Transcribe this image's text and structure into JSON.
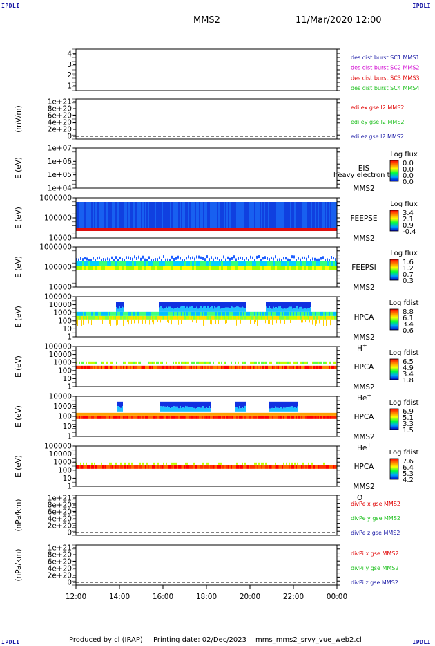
{
  "header": {
    "corner_label": "IPDLI",
    "spacecraft": "MMS2",
    "datetime": "11/Mar/2020 12:00"
  },
  "footer": {
    "produced_by": "Produced by cl (IRAP)",
    "printing_date": "Printing date: 02/Dec/2023",
    "filename": "mms_mms2_srvy_vue_web2.cl"
  },
  "colors": {
    "blue_label": "#1a1aa6",
    "magenta_label": "#d000d0",
    "red_label": "#e00000",
    "green_label": "#20c020"
  },
  "chart_data": {
    "type": "heatmap",
    "x_tick_labels": [
      "12:00",
      "14:00",
      "16:00",
      "18:00",
      "20:00",
      "22:00",
      "00:00"
    ],
    "xlim": [
      "12:00",
      "00:00"
    ],
    "panels": [
      {
        "type": "line",
        "yticks": [
          "1",
          "2",
          "3",
          "4"
        ],
        "ylim": [
          0.5,
          4.5
        ],
        "ylabel": "",
        "legend": [
          {
            "text": "des dist burst SC1 MMS1",
            "color": "#1a1aa6"
          },
          {
            "text": "des dist burst SC2 MMS2",
            "color": "#d000d0"
          },
          {
            "text": "des dist burst SC3 MMS3",
            "color": "#e00000"
          },
          {
            "text": "des dist burst SC4 MMS4",
            "color": "#20c020"
          }
        ]
      },
      {
        "type": "line",
        "yticks": [
          "0",
          "2e+20",
          "4e+20",
          "6e+20",
          "8e+20",
          "1e+21"
        ],
        "ylim": [
          0,
          1e+21
        ],
        "ylabel": "(mV/m)",
        "legend": [
          {
            "text": "edi ex gse l2 MMS2",
            "color": "#e00000"
          },
          {
            "text": "edi ey gse l2 MMS2",
            "color": "#20c020"
          },
          {
            "text": "edi ez gse l2 MMS2",
            "color": "#1a1aa6"
          }
        ]
      },
      {
        "type": "heatmap",
        "yticks": [
          "1e+04",
          "1e+05",
          "1e+06",
          "1e+07"
        ],
        "ylim": [
          10000.0,
          10000000.0
        ],
        "ylabel": "E (eV)",
        "instrument": "EIS",
        "sc": "MMS2",
        "overlay": "heavy electron to",
        "cbar_title": "Log flux",
        "cbar_ticks": [
          "0.0",
          "0.0",
          "0.0",
          "0.0"
        ]
      },
      {
        "type": "heatmap",
        "yticks": [
          "10000",
          "100000",
          "1000000"
        ],
        "ylim": [
          10000,
          1000000
        ],
        "ylabel": "E (eV)",
        "instrument": "FEEPSE",
        "sc": "MMS2",
        "cbar_title": "Log flux",
        "cbar_ticks": [
          "3.4",
          "2.1",
          "0.9",
          "-0.4"
        ]
      },
      {
        "type": "heatmap",
        "yticks": [
          "10000",
          "100000",
          "1000000"
        ],
        "ylim": [
          10000,
          1000000
        ],
        "ylabel": "E (eV)",
        "instrument": "FEEPSI",
        "sc": "MMS2",
        "cbar_title": "Log flux",
        "cbar_ticks": [
          "1.6",
          "1.2",
          "0.7",
          "0.3"
        ]
      },
      {
        "type": "heatmap",
        "yticks": [
          "1",
          "10",
          "100",
          "1000",
          "10000",
          "100000"
        ],
        "ylim": [
          1,
          100000
        ],
        "ylabel": "E (eV)",
        "instrument": "HPCA",
        "sc": "MMS2",
        "species": "H",
        "species_sup": "+",
        "cbar_title": "Log fdist",
        "cbar_ticks": [
          "8.8",
          "6.1",
          "3.4",
          "0.6"
        ]
      },
      {
        "type": "heatmap",
        "yticks": [
          "1",
          "10",
          "100",
          "1000",
          "10000",
          "100000"
        ],
        "ylim": [
          1,
          100000
        ],
        "ylabel": "E (eV)",
        "instrument": "HPCA",
        "sc": "MMS2",
        "species": "He",
        "species_sup": "+",
        "cbar_title": "Log fdist",
        "cbar_ticks": [
          "6.5",
          "4.9",
          "3.4",
          "1.8"
        ]
      },
      {
        "type": "heatmap",
        "yticks": [
          "1",
          "10",
          "100",
          "1000",
          "10000"
        ],
        "ylim": [
          1,
          10000
        ],
        "ylabel": "E (eV)",
        "instrument": "HPCA",
        "sc": "MMS2",
        "species": "He",
        "species_sup": "++",
        "cbar_title": "Log fdist",
        "cbar_ticks": [
          "6.9",
          "5.1",
          "3.3",
          "1.5"
        ]
      },
      {
        "type": "heatmap",
        "yticks": [
          "1",
          "10",
          "100",
          "1000",
          "10000",
          "100000"
        ],
        "ylim": [
          1,
          100000
        ],
        "ylabel": "E (eV)",
        "instrument": "HPCA",
        "sc": "MMS2",
        "species": "O",
        "species_sup": "+",
        "cbar_title": "Log fdist",
        "cbar_ticks": [
          "7.6",
          "6.4",
          "5.3",
          "4.2"
        ]
      },
      {
        "type": "line",
        "yticks": [
          "0",
          "2e+20",
          "4e+20",
          "6e+20",
          "8e+20",
          "1e+21"
        ],
        "ylim": [
          0,
          1e+21
        ],
        "ylabel": "(nPa/km)",
        "legend": [
          {
            "text": "divPe x gse MMS2",
            "color": "#e00000"
          },
          {
            "text": "divPe y gse MMS2",
            "color": "#20c020"
          },
          {
            "text": "divPe z gse MMS2",
            "color": "#1a1aa6"
          }
        ]
      },
      {
        "type": "line",
        "yticks": [
          "0",
          "2e+20",
          "4e+20",
          "6e+20",
          "8e+20",
          "1e+21"
        ],
        "ylim": [
          0,
          1e+21
        ],
        "ylabel": "(nPa/km)",
        "legend": [
          {
            "text": "divPi x gse MMS2",
            "color": "#e00000"
          },
          {
            "text": "divPi y gse MMS2",
            "color": "#20c020"
          },
          {
            "text": "divPi z gse MMS2",
            "color": "#1a1aa6"
          }
        ]
      }
    ]
  }
}
